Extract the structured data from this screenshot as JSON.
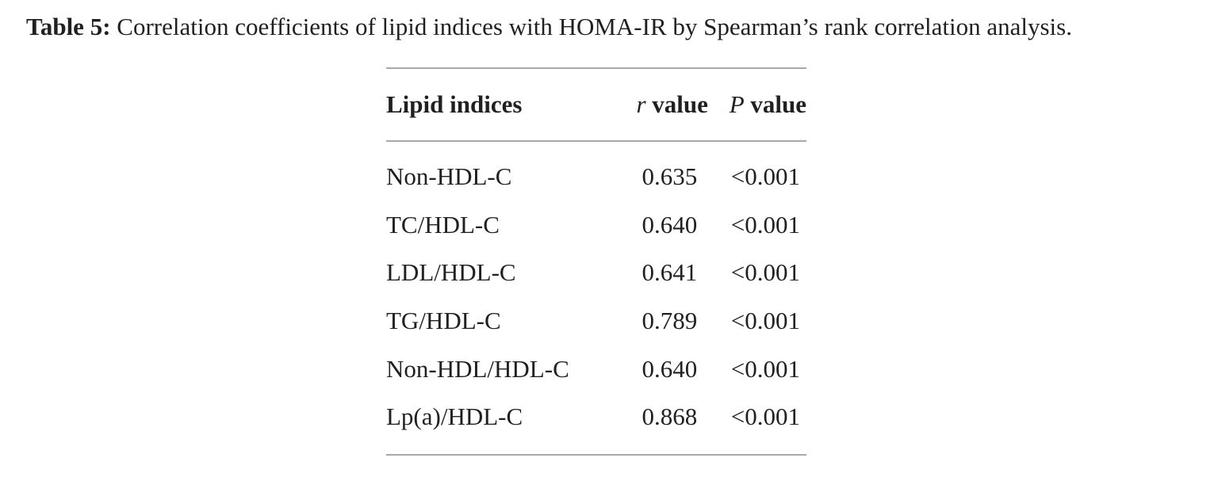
{
  "caption": {
    "label": "Table 5:",
    "text": "Correlation coefficients of lipid indices with HOMA-IR by Spearman’s rank correlation analysis."
  },
  "table": {
    "headers": {
      "col1": "Lipid indices",
      "col2_symbol": "r",
      "col2_text": "value",
      "col3_symbol": "P",
      "col3_text": "value"
    },
    "rows": [
      {
        "index": "Non-HDL-C",
        "r": "0.635",
        "p": "<0.001"
      },
      {
        "index": "TC/HDL-C",
        "r": "0.640",
        "p": "<0.001"
      },
      {
        "index": "LDL/HDL-C",
        "r": "0.641",
        "p": "<0.001"
      },
      {
        "index": "TG/HDL-C",
        "r": "0.789",
        "p": "<0.001"
      },
      {
        "index": "Non-HDL/HDL-C",
        "r": "0.640",
        "p": "<0.001"
      },
      {
        "index": "Lp(a)/HDL-C",
        "r": "0.868",
        "p": "<0.001"
      }
    ]
  }
}
